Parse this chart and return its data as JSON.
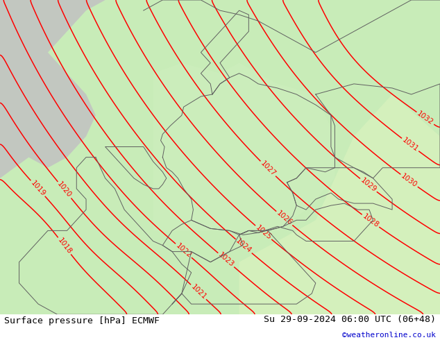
{
  "title_left": "Surface pressure [hPa] ECMWF",
  "title_right": "Su 29-09-2024 06:00 UTC (06+48)",
  "credit": "©weatheronline.co.uk",
  "credit_color": "#0000cc",
  "contour_color": "#ff0000",
  "border_color": "#606060",
  "label_color": "#ff0000",
  "bottom_bar_color": "#ffffff",
  "bottom_text_color": "#000000",
  "sea_color": "#d8d8d8",
  "land_color_low": "#b8e8b0",
  "land_color_high": "#e8f8e0",
  "figsize": [
    6.34,
    4.9
  ],
  "dpi": 100,
  "xlim": [
    -2.5,
    20.5
  ],
  "ylim": [
    43.5,
    58.5
  ],
  "contour_levels_min": 1018,
  "contour_levels_max": 1032,
  "contour_interval": 1
}
